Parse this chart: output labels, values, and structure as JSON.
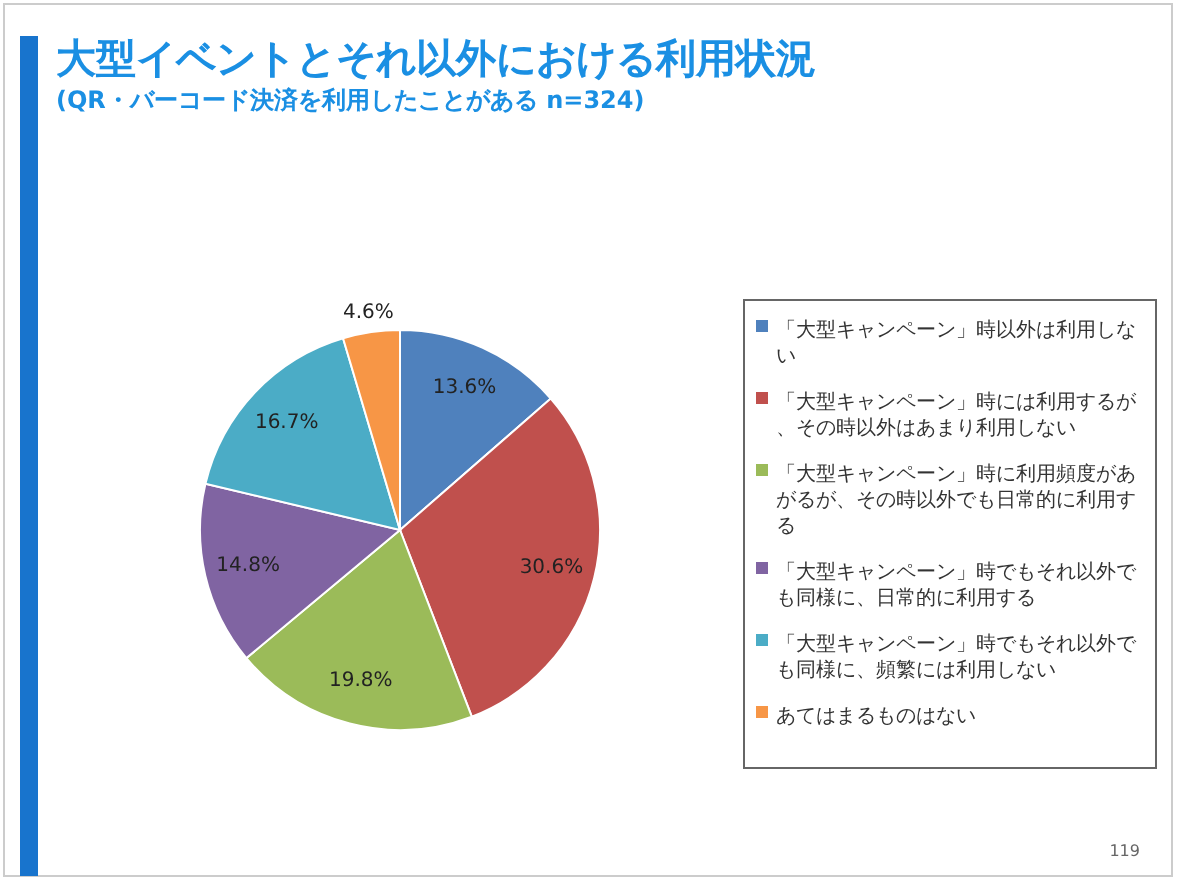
{
  "chart_data": {
    "type": "pie",
    "title": "大型イベントとそれ以外における利用状況",
    "subtitle": "(QR・バーコード決済を利用したことがある n=324)",
    "categories": [
      "「大型キャンペーン」時以外は利用しない",
      "「大型キャンペーン」時には利用するが、その時以外はあまり利用しない",
      "「大型キャンペーン」時に利用頻度があがるが、その時以外でも日常的に利用する",
      "「大型キャンペーン」時でもそれ以外でも同様に、日常的に利用する",
      "「大型キャンペーン」時でもそれ以外でも同様に、頻繁には利用しない",
      "あてはまるものはない"
    ],
    "values": [
      13.6,
      30.6,
      19.8,
      14.8,
      16.7,
      4.6
    ],
    "value_labels": [
      "13.6%",
      "30.6%",
      "19.8%",
      "14.8%",
      "16.7%",
      "4.6%"
    ],
    "colors": [
      "#4f81bd",
      "#c0504d",
      "#9bbb59",
      "#8064a2",
      "#4bacc6",
      "#f79646"
    ],
    "legend": "right",
    "annotations": [
      "119"
    ]
  }
}
